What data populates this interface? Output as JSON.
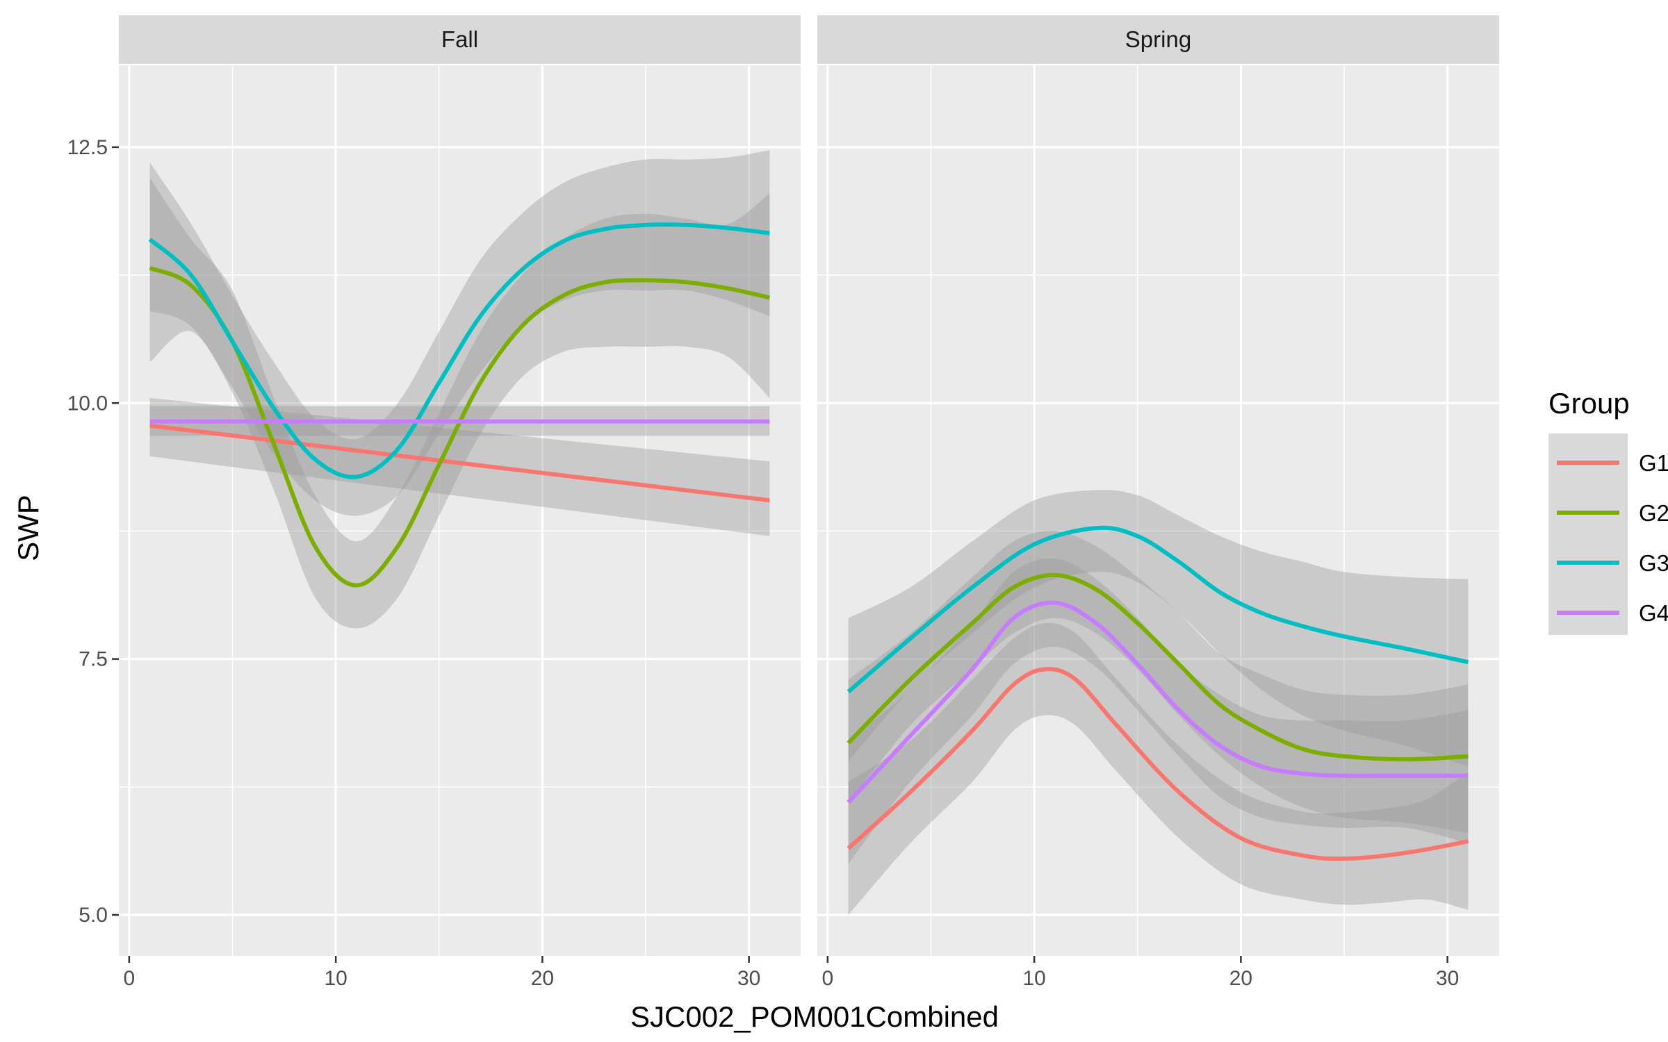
{
  "chart_data": {
    "type": "line",
    "xlabel": "SJC002_POM001Combined",
    "ylabel": "SWP",
    "xlim": [
      -0.5,
      32.5
    ],
    "ylim": [
      4.6,
      13.3
    ],
    "x_ticks": [
      0,
      10,
      20,
      30
    ],
    "y_ticks": [
      5.0,
      7.5,
      10.0,
      12.5
    ],
    "y_tick_labels": [
      "5.0",
      "7.5",
      "10.0",
      "12.5"
    ],
    "grid": true,
    "legend": {
      "title": "Group",
      "position": "right",
      "entries": [
        "G1",
        "G2",
        "G3",
        "G4"
      ]
    },
    "colors": {
      "G1": "#F8766D",
      "G2": "#7CAE00",
      "G3": "#00BFC4",
      "G4": "#C77CFF"
    },
    "panel_background": "#EBEBEB",
    "strip_background": "#D9D9D9",
    "band_color": "#999999",
    "facets": [
      {
        "name": "Fall",
        "series": [
          {
            "name": "G1",
            "x": [
              1,
              31
            ],
            "y": [
              9.78,
              9.05
            ],
            "lower": [
              9.48,
              8.7
            ],
            "upper": [
              10.05,
              9.43
            ]
          },
          {
            "name": "G2",
            "x": [
              1,
              3,
              5,
              7,
              9,
              11,
              13,
              15,
              17,
              19,
              21,
              23,
              25,
              27,
              29,
              31
            ],
            "y": [
              11.32,
              11.15,
              10.6,
              9.6,
              8.6,
              8.22,
              8.6,
              9.4,
              10.2,
              10.75,
              11.05,
              11.18,
              11.2,
              11.18,
              11.12,
              11.03
            ],
            "lower": [
              10.4,
              10.7,
              10.1,
              9.15,
              8.1,
              7.8,
              8.1,
              8.9,
              9.7,
              10.25,
              10.5,
              10.55,
              10.55,
              10.55,
              10.45,
              10.05
            ],
            "upper": [
              12.2,
              11.6,
              11.1,
              10.05,
              9.1,
              8.65,
              9.1,
              9.9,
              10.7,
              11.25,
              11.6,
              11.8,
              11.85,
              11.8,
              11.75,
              12.05
            ]
          },
          {
            "name": "G3",
            "x": [
              1,
              3,
              5,
              7,
              9,
              11,
              13,
              15,
              17,
              19,
              21,
              23,
              25,
              27,
              29,
              31
            ],
            "y": [
              11.6,
              11.25,
              10.6,
              9.95,
              9.45,
              9.28,
              9.55,
              10.2,
              10.85,
              11.3,
              11.58,
              11.7,
              11.74,
              11.74,
              11.71,
              11.66
            ],
            "lower": [
              10.9,
              10.75,
              10.15,
              9.5,
              9.05,
              8.9,
              9.1,
              9.7,
              10.3,
              10.75,
              11.0,
              11.1,
              11.1,
              11.1,
              11.0,
              10.85
            ],
            "upper": [
              12.35,
              11.75,
              11.05,
              10.4,
              9.85,
              9.65,
              10.0,
              10.7,
              11.4,
              11.85,
              12.15,
              12.3,
              12.38,
              12.38,
              12.4,
              12.47
            ]
          },
          {
            "name": "G4",
            "x": [
              1,
              31
            ],
            "y": [
              9.82,
              9.82
            ],
            "lower": [
              9.68,
              9.68
            ],
            "upper": [
              9.97,
              9.97
            ]
          }
        ]
      },
      {
        "name": "Spring",
        "series": [
          {
            "name": "G1",
            "x": [
              1,
              4,
              7,
              9,
              10.5,
              12,
              14,
              17,
              20,
              23,
              25,
              27,
              29,
              31
            ],
            "y": [
              5.65,
              6.2,
              6.8,
              7.25,
              7.4,
              7.3,
              6.85,
              6.2,
              5.75,
              5.58,
              5.55,
              5.58,
              5.64,
              5.72
            ],
            "lower": [
              5.0,
              5.7,
              6.3,
              6.8,
              6.95,
              6.85,
              6.4,
              5.75,
              5.3,
              5.15,
              5.1,
              5.12,
              5.15,
              5.05
            ],
            "upper": [
              6.3,
              6.7,
              7.3,
              7.7,
              7.85,
              7.75,
              7.3,
              6.65,
              6.2,
              6.01,
              6.0,
              6.04,
              6.13,
              6.4
            ]
          },
          {
            "name": "G2",
            "x": [
              1,
              4,
              7,
              9,
              11,
              13,
              15,
              17,
              19,
              21,
              23,
              25,
              28,
              31
            ],
            "y": [
              6.68,
              7.3,
              7.85,
              8.2,
              8.32,
              8.18,
              7.85,
              7.45,
              7.05,
              6.8,
              6.62,
              6.55,
              6.52,
              6.55
            ],
            "lower": [
              6.1,
              6.85,
              7.4,
              7.75,
              7.9,
              7.75,
              7.4,
              6.95,
              6.55,
              6.25,
              6.05,
              5.95,
              5.9,
              5.8
            ],
            "upper": [
              7.3,
              7.75,
              8.3,
              8.65,
              8.75,
              8.6,
              8.3,
              7.95,
              7.55,
              7.35,
              7.2,
              7.15,
              7.15,
              7.25
            ]
          },
          {
            "name": "G3",
            "x": [
              1,
              4,
              7,
              10,
              13,
              15,
              17,
              19,
              21,
              23,
              25,
              28,
              31
            ],
            "y": [
              7.18,
              7.7,
              8.2,
              8.62,
              8.78,
              8.7,
              8.45,
              8.15,
              7.95,
              7.82,
              7.72,
              7.6,
              7.47
            ],
            "lower": [
              6.5,
              7.2,
              7.75,
              8.2,
              8.35,
              8.25,
              7.95,
              7.55,
              7.2,
              6.95,
              6.8,
              6.65,
              6.45
            ],
            "upper": [
              7.9,
              8.2,
              8.65,
              9.05,
              9.15,
              9.1,
              8.9,
              8.7,
              8.55,
              8.45,
              8.35,
              8.3,
              8.28
            ]
          },
          {
            "name": "G4",
            "x": [
              1,
              4,
              7,
              9,
              11,
              13,
              15,
              17,
              19,
              21,
              23,
              25,
              28,
              31
            ],
            "y": [
              6.1,
              6.75,
              7.4,
              7.9,
              8.05,
              7.85,
              7.45,
              7.0,
              6.65,
              6.45,
              6.38,
              6.36,
              6.36,
              6.36
            ],
            "lower": [
              5.5,
              6.3,
              6.95,
              7.45,
              7.62,
              7.42,
              7.0,
              6.55,
              6.15,
              5.95,
              5.88,
              5.85,
              5.85,
              5.7
            ],
            "upper": [
              6.7,
              7.2,
              7.85,
              8.35,
              8.48,
              8.28,
              7.9,
              7.45,
              7.15,
              6.95,
              6.9,
              6.9,
              6.9,
              7.0
            ]
          }
        ]
      }
    ]
  }
}
